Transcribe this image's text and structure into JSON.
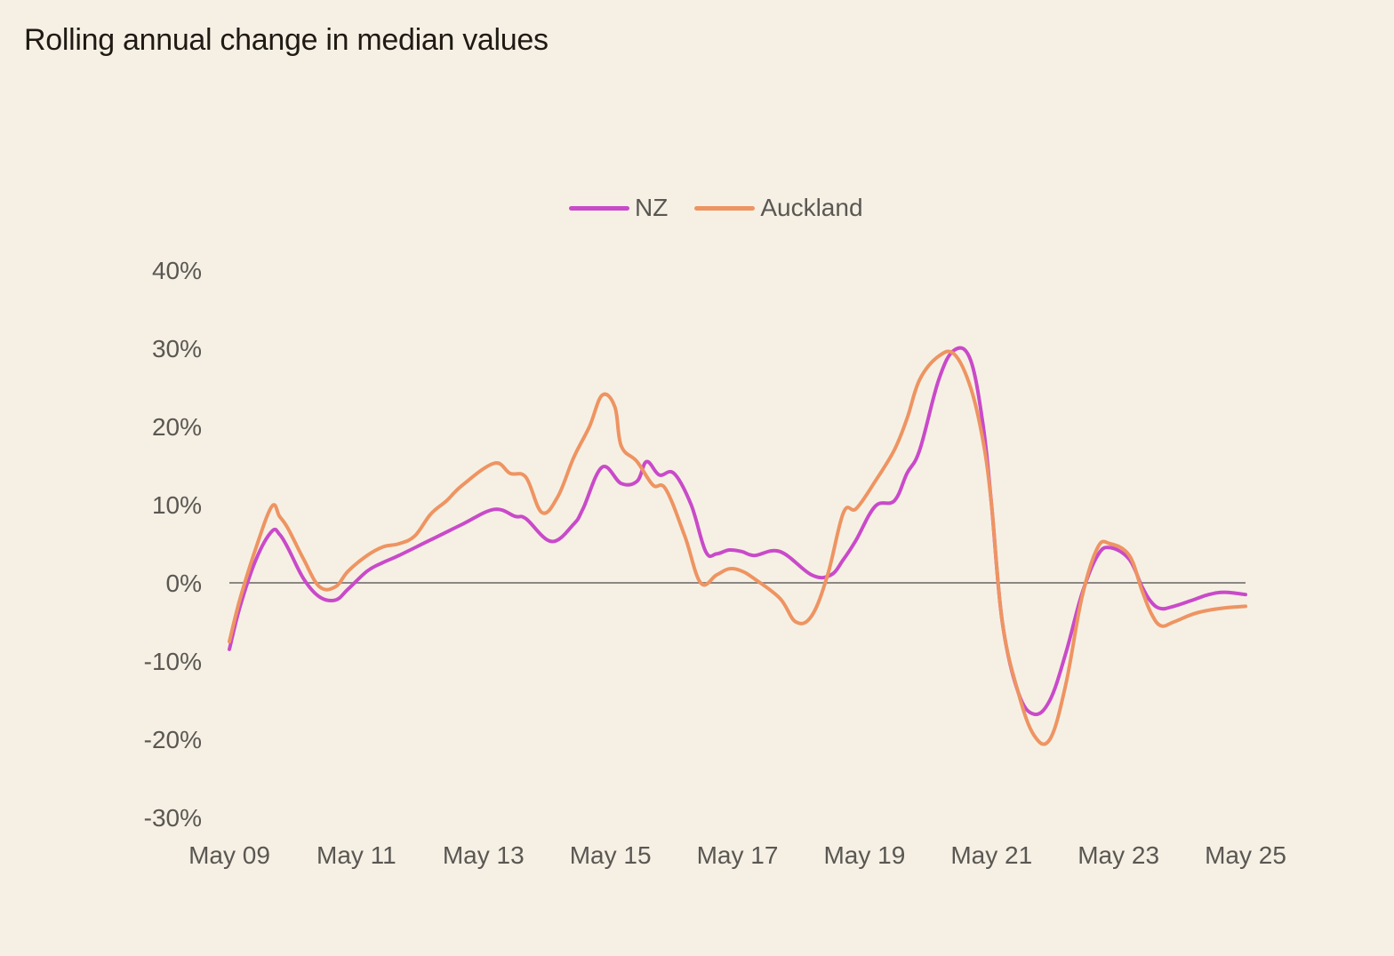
{
  "title": "Rolling annual change in median values",
  "colors": {
    "background": "#f6f0e4",
    "nz": "#c94ac9",
    "auckland": "#ee9462",
    "zero_line": "#8a8784",
    "text": "#5a5753"
  },
  "chart_data": {
    "type": "line",
    "xlabel": "",
    "ylabel": "",
    "ylim": [
      -30,
      40
    ],
    "xlim": [
      "2009-05",
      "2025-05"
    ],
    "grid": false,
    "legend_position": "top-center",
    "y_ticks": [
      "40%",
      "30%",
      "20%",
      "10%",
      "0%",
      "-10%",
      "-20%",
      "-30%"
    ],
    "y_tick_values": [
      40,
      30,
      20,
      10,
      0,
      -10,
      -20,
      -30
    ],
    "x_ticks": [
      "May 09",
      "May 11",
      "May 13",
      "May 15",
      "May 17",
      "May 19",
      "May 21",
      "May 23",
      "May 25"
    ],
    "x_tick_values": [
      2009.33,
      2011.33,
      2013.33,
      2015.33,
      2017.33,
      2019.33,
      2021.33,
      2023.33,
      2025.33
    ],
    "series": [
      {
        "name": "NZ",
        "color": "#c94ac9",
        "x": [
          2009.33,
          2009.5,
          2009.75,
          2010.0,
          2010.12,
          2010.25,
          2010.5,
          2010.75,
          2011.0,
          2011.2,
          2011.5,
          2011.75,
          2012.0,
          2012.5,
          2013.0,
          2013.5,
          2013.83,
          2014.0,
          2014.4,
          2014.75,
          2014.9,
          2015.2,
          2015.5,
          2015.75,
          2015.9,
          2016.1,
          2016.33,
          2016.6,
          2016.83,
          2017.0,
          2017.2,
          2017.4,
          2017.6,
          2018.0,
          2018.5,
          2018.8,
          2019.0,
          2019.2,
          2019.5,
          2019.8,
          2020.0,
          2020.2,
          2020.5,
          2020.75,
          2021.0,
          2021.2,
          2021.33,
          2021.5,
          2021.75,
          2022.0,
          2022.25,
          2022.5,
          2022.75,
          2023.0,
          2023.2,
          2023.5,
          2023.7,
          2023.85,
          2024.0,
          2024.2,
          2024.5,
          2024.75,
          2025.0,
          2025.33
        ],
        "values": [
          -8.5,
          -3.0,
          3.0,
          6.6,
          6.2,
          4.5,
          0.5,
          -1.8,
          -2.2,
          -0.8,
          1.5,
          2.6,
          3.5,
          5.5,
          7.5,
          9.4,
          8.5,
          8.2,
          5.3,
          7.5,
          9.5,
          14.8,
          12.7,
          13.0,
          15.5,
          13.8,
          14.0,
          10.0,
          4.0,
          3.7,
          4.2,
          4.0,
          3.5,
          4.0,
          1.0,
          1.0,
          3.0,
          5.5,
          9.8,
          10.5,
          14.0,
          17.0,
          26.0,
          29.8,
          28.5,
          20.0,
          10.0,
          -5.0,
          -14.0,
          -16.8,
          -15.0,
          -9.0,
          -1.5,
          3.5,
          4.5,
          3.0,
          -0.5,
          -2.5,
          -3.3,
          -3.0,
          -2.2,
          -1.5,
          -1.2,
          -1.5
        ]
      },
      {
        "name": "Auckland",
        "color": "#ee9462",
        "x": [
          2009.33,
          2009.5,
          2009.75,
          2010.0,
          2010.12,
          2010.25,
          2010.5,
          2010.75,
          2011.0,
          2011.2,
          2011.5,
          2011.75,
          2012.0,
          2012.25,
          2012.5,
          2012.75,
          2013.0,
          2013.5,
          2013.75,
          2014.0,
          2014.25,
          2014.5,
          2014.75,
          2015.0,
          2015.2,
          2015.4,
          2015.5,
          2015.75,
          2016.0,
          2016.2,
          2016.5,
          2016.75,
          2017.0,
          2017.2,
          2017.4,
          2017.6,
          2018.0,
          2018.25,
          2018.5,
          2018.75,
          2019.0,
          2019.2,
          2019.5,
          2019.8,
          2020.0,
          2020.2,
          2020.5,
          2020.75,
          2021.0,
          2021.2,
          2021.33,
          2021.5,
          2021.75,
          2022.0,
          2022.25,
          2022.5,
          2022.75,
          2023.0,
          2023.2,
          2023.5,
          2023.7,
          2023.85,
          2024.0,
          2024.2,
          2024.5,
          2024.75,
          2025.0,
          2025.33
        ],
        "values": [
          -7.5,
          -2.0,
          4.5,
          9.8,
          8.5,
          7.0,
          3.0,
          -0.5,
          -0.5,
          1.5,
          3.5,
          4.6,
          5.0,
          6.0,
          8.8,
          10.5,
          12.5,
          15.3,
          14.0,
          13.5,
          9.0,
          11.0,
          16.0,
          20.0,
          24.0,
          22.5,
          17.5,
          15.5,
          12.5,
          12.0,
          6.0,
          0.0,
          1.0,
          1.8,
          1.5,
          0.5,
          -2.0,
          -5.0,
          -4.2,
          1.0,
          9.0,
          9.5,
          13.0,
          17.0,
          21.0,
          26.0,
          29.0,
          29.2,
          25.0,
          18.0,
          10.0,
          -5.0,
          -14.0,
          -19.5,
          -20.0,
          -13.0,
          -2.0,
          4.5,
          5.0,
          3.5,
          -1.0,
          -4.0,
          -5.5,
          -5.0,
          -4.0,
          -3.5,
          -3.2,
          -3.0
        ]
      }
    ]
  }
}
